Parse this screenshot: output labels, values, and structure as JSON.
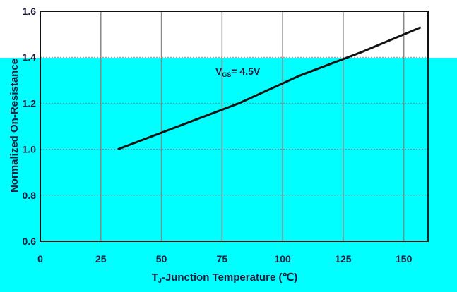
{
  "chart_data": {
    "type": "line",
    "xlabel": "T",
    "xlabel_sub": "J",
    "xlabel_rest": "-Junction Temperature (℃)",
    "ylabel": "Normalized On-Resistance",
    "annotation": {
      "main": "V",
      "sub": "GS",
      "rest": "= 4.5V"
    },
    "xlim": [
      0,
      160
    ],
    "ylim": [
      0.6,
      1.6
    ],
    "x_ticks": [
      0,
      25,
      50,
      75,
      100,
      125,
      150
    ],
    "y_ticks": [
      0.6,
      0.8,
      1.0,
      1.2,
      1.4,
      1.6
    ],
    "y_tick_labels": [
      "0.6",
      "0.8",
      "1.0",
      "1.2",
      "1.4",
      "1.6"
    ],
    "series": [
      {
        "x": [
          32,
          57,
          82,
          107,
          132,
          157
        ],
        "y": [
          1.0,
          1.1,
          1.2,
          1.32,
          1.42,
          1.53
        ]
      }
    ],
    "grid": true,
    "colors": {
      "plot_band": "#00ffff",
      "line": "#111111",
      "grid": "#888888",
      "text": "#1a1a3a"
    }
  }
}
